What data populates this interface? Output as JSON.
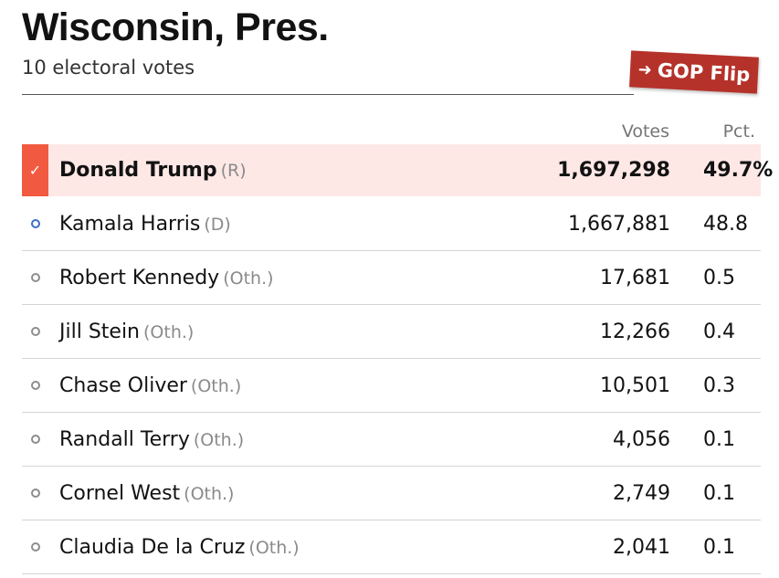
{
  "header": {
    "title": "Wisconsin, Pres.",
    "subtitle": "10 electoral votes",
    "flip_label": "GOP Flip"
  },
  "columns": {
    "votes": "Votes",
    "pct": "Pct."
  },
  "colors": {
    "winner_marker": "#f15a40",
    "winner_row_bg": "#fde8e6",
    "flip_badge": "#b5322a",
    "dem_dot": "#3b6fc6",
    "other_dot": "#8d8d8d"
  },
  "candidates": [
    {
      "name": "Donald Trump",
      "party": "(R)",
      "votes": "1,697,298",
      "pct": "49.7%",
      "winner": true,
      "icon": "checkmark-icon"
    },
    {
      "name": "Kamala Harris",
      "party": "(D)",
      "votes": "1,667,881",
      "pct": "48.8",
      "winner": false,
      "icon": "dem-dot-icon"
    },
    {
      "name": "Robert Kennedy",
      "party": "(Oth.)",
      "votes": "17,681",
      "pct": "0.5",
      "winner": false,
      "icon": "other-dot-icon"
    },
    {
      "name": "Jill Stein",
      "party": "(Oth.)",
      "votes": "12,266",
      "pct": "0.4",
      "winner": false,
      "icon": "other-dot-icon"
    },
    {
      "name": "Chase Oliver",
      "party": "(Oth.)",
      "votes": "10,501",
      "pct": "0.3",
      "winner": false,
      "icon": "other-dot-icon"
    },
    {
      "name": "Randall Terry",
      "party": "(Oth.)",
      "votes": "4,056",
      "pct": "0.1",
      "winner": false,
      "icon": "other-dot-icon"
    },
    {
      "name": "Cornel West",
      "party": "(Oth.)",
      "votes": "2,749",
      "pct": "0.1",
      "winner": false,
      "icon": "other-dot-icon"
    },
    {
      "name": "Claudia De la Cruz",
      "party": "(Oth.)",
      "votes": "2,041",
      "pct": "0.1",
      "winner": false,
      "icon": "other-dot-icon"
    }
  ]
}
